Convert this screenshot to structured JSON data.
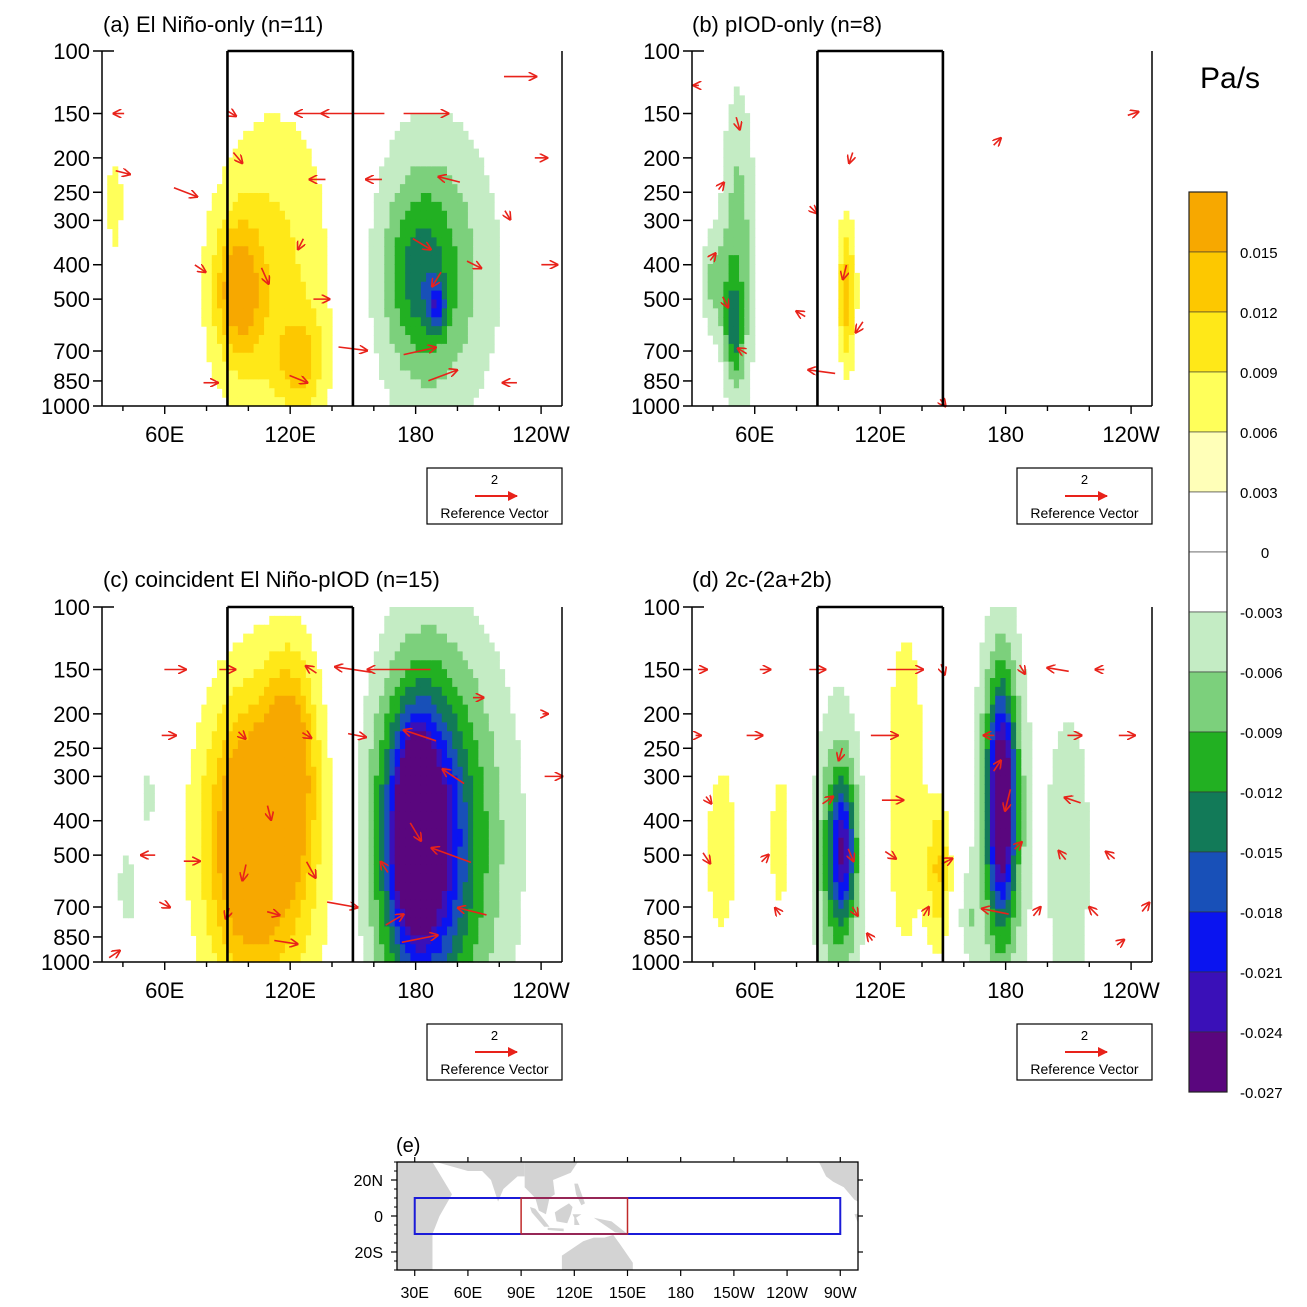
{
  "colorbar": {
    "title": "Pa/s",
    "colors": [
      "#f7a800",
      "#fdc800",
      "#ffe818",
      "#ffff5a",
      "#ffffb8",
      "#ffffff",
      "#ffffff",
      "#c4ecc4",
      "#7cd07c",
      "#22b022",
      "#127a58",
      "#1850b8",
      "#0a14f0",
      "#3a10b8",
      "#5a067e"
    ],
    "labels": [
      "0.015",
      "0.012",
      "0.009",
      "0.006",
      "0.003",
      "0",
      "-0.003",
      "-0.006",
      "-0.009",
      "-0.012",
      "-0.015",
      "-0.018",
      "-0.021",
      "-0.024",
      "-0.027"
    ]
  },
  "panels": [
    {
      "title": "(a)   El Niño-only (n=11)",
      "ref_vector_value": "2",
      "ref_vector_label": "Reference Vector",
      "blobs": [
        {
          "lon": 112,
          "p": 430,
          "wl": 22,
          "wp": 380,
          "v": 0.007
        },
        {
          "lon": 95,
          "p": 470,
          "wl": 8,
          "wp": 160,
          "v": 0.011
        },
        {
          "lon": 125,
          "p": 750,
          "wl": 8,
          "wp": 180,
          "v": 0.007
        },
        {
          "lon": 36,
          "p": 270,
          "wl": 3,
          "wp": 80,
          "v": 0.005
        },
        {
          "lon": 188,
          "p": 420,
          "wl": 22,
          "wp": 330,
          "v": -0.009
        },
        {
          "lon": 182,
          "p": 430,
          "wl": 10,
          "wp": 170,
          "v": -0.006
        },
        {
          "lon": 190,
          "p": 520,
          "wl": 3,
          "wp": 60,
          "v": -0.009
        }
      ],
      "arrows": [
        {
          "lon": 38,
          "p": 150,
          "u": -0.6,
          "w": 0
        },
        {
          "lon": 92,
          "p": 150,
          "u": 0.5,
          "w": -0.3
        },
        {
          "lon": 150,
          "p": 150,
          "u": -3.5,
          "w": 0
        },
        {
          "lon": 185,
          "p": 150,
          "u": 2.5,
          "w": 0
        },
        {
          "lon": 130,
          "p": 150,
          "u": -1.8,
          "w": 0
        },
        {
          "lon": 230,
          "p": 118,
          "u": 1.8,
          "w": 0
        },
        {
          "lon": 95,
          "p": 200,
          "u": 0.5,
          "w": -0.6
        },
        {
          "lon": 40,
          "p": 220,
          "u": 0.8,
          "w": -0.2
        },
        {
          "lon": 70,
          "p": 250,
          "u": 1.3,
          "w": -0.5
        },
        {
          "lon": 133,
          "p": 230,
          "u": -0.9,
          "w": 0
        },
        {
          "lon": 160,
          "p": 230,
          "u": -0.9,
          "w": 0
        },
        {
          "lon": 196,
          "p": 230,
          "u": -1.2,
          "w": 0.3
        },
        {
          "lon": 224,
          "p": 290,
          "u": 0.3,
          "w": -0.5
        },
        {
          "lon": 240,
          "p": 200,
          "u": 0.7,
          "w": 0
        },
        {
          "lon": 125,
          "p": 350,
          "u": -0.3,
          "w": -0.6
        },
        {
          "lon": 183,
          "p": 350,
          "u": 1.0,
          "w": -0.6
        },
        {
          "lon": 77,
          "p": 410,
          "u": 0.6,
          "w": -0.4
        },
        {
          "lon": 108,
          "p": 430,
          "u": 0.4,
          "w": -0.9
        },
        {
          "lon": 208,
          "p": 400,
          "u": 0.8,
          "w": -0.4
        },
        {
          "lon": 244,
          "p": 400,
          "u": 0.9,
          "w": 0
        },
        {
          "lon": 135,
          "p": 500,
          "u": 0.9,
          "w": 0
        },
        {
          "lon": 190,
          "p": 440,
          "u": -0.5,
          "w": -0.8
        },
        {
          "lon": 150,
          "p": 690,
          "u": 1.6,
          "w": -0.2
        },
        {
          "lon": 182,
          "p": 700,
          "u": 1.8,
          "w": 0.4
        },
        {
          "lon": 193,
          "p": 820,
          "u": 1.6,
          "w": 0.6
        },
        {
          "lon": 124,
          "p": 840,
          "u": 1.0,
          "w": -0.4
        },
        {
          "lon": 82,
          "p": 860,
          "u": 0.8,
          "w": 0
        },
        {
          "lon": 225,
          "p": 860,
          "u": -0.8,
          "w": 0
        }
      ]
    },
    {
      "title": "(b)   pIOD-only (n=8)",
      "ref_vector_value": "2",
      "ref_vector_label": "Reference Vector",
      "blobs": [
        {
          "lon": 52,
          "p": 380,
          "wl": 6,
          "wp": 330,
          "v": -0.008
        },
        {
          "lon": 40,
          "p": 450,
          "wl": 5,
          "wp": 120,
          "v": -0.006
        },
        {
          "lon": 50,
          "p": 600,
          "wl": 3,
          "wp": 150,
          "v": -0.008
        },
        {
          "lon": 104,
          "p": 480,
          "wl": 3,
          "wp": 180,
          "v": 0.011
        },
        {
          "lon": 176,
          "p": 180,
          "wl": 1.5,
          "wp": 25,
          "v": 0.003
        }
      ],
      "arrows": [
        {
          "lon": 32,
          "p": 125,
          "u": -0.3,
          "w": 0
        },
        {
          "lon": 52,
          "p": 160,
          "u": 0.2,
          "w": -0.7
        },
        {
          "lon": 106,
          "p": 200,
          "u": -0.2,
          "w": -0.6
        },
        {
          "lon": 176,
          "p": 180,
          "u": 0.4,
          "w": 0.4
        },
        {
          "lon": 241,
          "p": 150,
          "u": 0.6,
          "w": 0.2
        },
        {
          "lon": 44,
          "p": 240,
          "u": 0.3,
          "w": 0.4
        },
        {
          "lon": 88,
          "p": 280,
          "u": 0.4,
          "w": -0.4
        },
        {
          "lon": 40,
          "p": 380,
          "u": 0.3,
          "w": 0.4
        },
        {
          "lon": 103,
          "p": 420,
          "u": -0.2,
          "w": -0.8
        },
        {
          "lon": 46,
          "p": 510,
          "u": 0.3,
          "w": -0.6
        },
        {
          "lon": 110,
          "p": 600,
          "u": -0.4,
          "w": -0.6
        },
        {
          "lon": 82,
          "p": 550,
          "u": -0.5,
          "w": 0.3
        },
        {
          "lon": 54,
          "p": 700,
          "u": -0.5,
          "w": 0.3
        },
        {
          "lon": 92,
          "p": 800,
          "u": -1.5,
          "w": 0.2
        },
        {
          "lon": 150,
          "p": 980,
          "u": 0.3,
          "w": -0.4
        }
      ]
    },
    {
      "title": "(c)   coincident El Niño-pIOD (n=15)",
      "ref_vector_value": "2",
      "ref_vector_label": "Reference Vector",
      "blobs": [
        {
          "lon": 112,
          "p": 480,
          "wl": 24,
          "wp": 450,
          "v": 0.008
        },
        {
          "lon": 100,
          "p": 450,
          "wl": 14,
          "wp": 300,
          "v": 0.013
        },
        {
          "lon": 120,
          "p": 270,
          "wl": 8,
          "wp": 140,
          "v": 0.011
        },
        {
          "lon": 190,
          "p": 460,
          "wl": 24,
          "wp": 480,
          "v": -0.014
        },
        {
          "lon": 182,
          "p": 450,
          "wl": 12,
          "wp": 300,
          "v": -0.02
        },
        {
          "lon": 180,
          "p": 420,
          "wl": 5,
          "wp": 150,
          "v": -0.026
        },
        {
          "lon": 42,
          "p": 620,
          "wl": 3,
          "wp": 120,
          "v": -0.006
        },
        {
          "lon": 52,
          "p": 350,
          "wl": 2,
          "wp": 60,
          "v": -0.006
        }
      ],
      "arrows": [
        {
          "lon": 65,
          "p": 150,
          "u": 1.2,
          "w": 0
        },
        {
          "lon": 90,
          "p": 150,
          "u": 0.9,
          "w": 0
        },
        {
          "lon": 130,
          "p": 150,
          "u": -0.6,
          "w": 0.4
        },
        {
          "lon": 150,
          "p": 150,
          "u": -2.0,
          "w": 0.3
        },
        {
          "lon": 172,
          "p": 150,
          "u": -3.5,
          "w": 0
        },
        {
          "lon": 210,
          "p": 180,
          "u": 0.6,
          "w": 0
        },
        {
          "lon": 242,
          "p": 200,
          "u": 0.3,
          "w": 0
        },
        {
          "lon": 62,
          "p": 230,
          "u": 0.8,
          "w": 0
        },
        {
          "lon": 97,
          "p": 230,
          "u": 0.4,
          "w": -0.4
        },
        {
          "lon": 128,
          "p": 230,
          "u": 0.5,
          "w": -0.3
        },
        {
          "lon": 152,
          "p": 230,
          "u": 1.0,
          "w": -0.2
        },
        {
          "lon": 182,
          "p": 230,
          "u": -1.8,
          "w": 0.6
        },
        {
          "lon": 198,
          "p": 300,
          "u": -1.2,
          "w": 0.8
        },
        {
          "lon": 246,
          "p": 300,
          "u": 1.0,
          "w": 0
        },
        {
          "lon": 110,
          "p": 380,
          "u": 0.2,
          "w": -0.8
        },
        {
          "lon": 180,
          "p": 430,
          "u": 0.6,
          "w": -1.0
        },
        {
          "lon": 197,
          "p": 500,
          "u": -2.2,
          "w": 0.8
        },
        {
          "lon": 52,
          "p": 500,
          "u": -0.8,
          "w": 0
        },
        {
          "lon": 73,
          "p": 520,
          "u": 0.9,
          "w": 0
        },
        {
          "lon": 98,
          "p": 560,
          "u": -0.2,
          "w": -0.9
        },
        {
          "lon": 130,
          "p": 550,
          "u": 0.5,
          "w": -0.9
        },
        {
          "lon": 165,
          "p": 540,
          "u": -0.4,
          "w": 0.6
        },
        {
          "lon": 207,
          "p": 720,
          "u": -1.6,
          "w": 0.4
        },
        {
          "lon": 145,
          "p": 690,
          "u": 1.7,
          "w": -0.3
        },
        {
          "lon": 90,
          "p": 730,
          "u": -0.2,
          "w": -0.6
        },
        {
          "lon": 112,
          "p": 730,
          "u": 0.7,
          "w": -0.2
        },
        {
          "lon": 60,
          "p": 690,
          "u": 0.6,
          "w": -0.3
        },
        {
          "lon": 182,
          "p": 860,
          "u": 2.0,
          "w": 0.4
        },
        {
          "lon": 36,
          "p": 950,
          "u": 0.6,
          "w": 0.4
        },
        {
          "lon": 118,
          "p": 880,
          "u": 1.3,
          "w": -0.2
        },
        {
          "lon": 170,
          "p": 760,
          "u": 1.0,
          "w": 0.6
        }
      ]
    },
    {
      "title": "(d)   2c-(2a+2b)",
      "ref_vector_value": "2",
      "ref_vector_label": "Reference Vector",
      "blobs": [
        {
          "lon": 100,
          "p": 520,
          "wl": 8,
          "wp": 400,
          "v": -0.011
        },
        {
          "lon": 102,
          "p": 480,
          "wl": 4,
          "wp": 150,
          "v": -0.014
        },
        {
          "lon": 178,
          "p": 380,
          "wl": 8,
          "wp": 340,
          "v": -0.014
        },
        {
          "lon": 178,
          "p": 350,
          "wl": 4,
          "wp": 170,
          "v": -0.02
        },
        {
          "lon": 210,
          "p": 500,
          "wl": 8,
          "wp": 420,
          "v": -0.006
        },
        {
          "lon": 44,
          "p": 480,
          "wl": 8,
          "wp": 350,
          "v": 0.004
        },
        {
          "lon": 72,
          "p": 450,
          "wl": 5,
          "wp": 250,
          "v": 0.004
        },
        {
          "lon": 132,
          "p": 330,
          "wl": 8,
          "wp": 350,
          "v": 0.005
        },
        {
          "lon": 148,
          "p": 560,
          "wl": 4,
          "wp": 200,
          "v": 0.009
        },
        {
          "lon": 162,
          "p": 760,
          "wl": 3,
          "wp": 160,
          "v": -0.005
        },
        {
          "lon": 242,
          "p": 320,
          "wl": 2,
          "wp": 70,
          "v": 0.003
        }
      ],
      "arrows": [
        {
          "lon": 35,
          "p": 150,
          "u": 0.5,
          "w": 0
        },
        {
          "lon": 65,
          "p": 150,
          "u": 0.6,
          "w": 0
        },
        {
          "lon": 90,
          "p": 150,
          "u": 0.9,
          "w": 0
        },
        {
          "lon": 132,
          "p": 150,
          "u": 2.0,
          "w": 0
        },
        {
          "lon": 150,
          "p": 150,
          "u": 0.2,
          "w": -0.6
        },
        {
          "lon": 188,
          "p": 150,
          "u": 0.3,
          "w": -0.5
        },
        {
          "lon": 205,
          "p": 150,
          "u": -1.2,
          "w": 0.2
        },
        {
          "lon": 225,
          "p": 150,
          "u": -0.5,
          "w": 0
        },
        {
          "lon": 60,
          "p": 230,
          "u": 0.9,
          "w": 0
        },
        {
          "lon": 33,
          "p": 230,
          "u": 0.3,
          "w": 0
        },
        {
          "lon": 122,
          "p": 230,
          "u": 1.5,
          "w": 0
        },
        {
          "lon": 172,
          "p": 230,
          "u": -0.6,
          "w": 0
        },
        {
          "lon": 213,
          "p": 230,
          "u": 0.8,
          "w": 0
        },
        {
          "lon": 238,
          "p": 230,
          "u": 0.9,
          "w": 0
        },
        {
          "lon": 101,
          "p": 260,
          "u": -0.2,
          "w": -0.7
        },
        {
          "lon": 176,
          "p": 280,
          "u": 0.4,
          "w": 0.6
        },
        {
          "lon": 38,
          "p": 350,
          "u": 0.3,
          "w": -0.4
        },
        {
          "lon": 95,
          "p": 350,
          "u": 0.6,
          "w": 0.4
        },
        {
          "lon": 126,
          "p": 350,
          "u": 1.2,
          "w": 0
        },
        {
          "lon": 181,
          "p": 350,
          "u": -0.3,
          "w": -1.2
        },
        {
          "lon": 212,
          "p": 350,
          "u": -0.9,
          "w": 0.3
        },
        {
          "lon": 186,
          "p": 470,
          "u": 0.4,
          "w": 0.4
        },
        {
          "lon": 106,
          "p": 500,
          "u": 0.3,
          "w": -0.7
        },
        {
          "lon": 37,
          "p": 510,
          "u": 0.4,
          "w": -0.6
        },
        {
          "lon": 65,
          "p": 510,
          "u": 0.4,
          "w": 0.4
        },
        {
          "lon": 125,
          "p": 500,
          "u": 0.6,
          "w": -0.4
        },
        {
          "lon": 152,
          "p": 520,
          "u": 0.6,
          "w": 0.3
        },
        {
          "lon": 207,
          "p": 500,
          "u": -0.4,
          "w": 0.5
        },
        {
          "lon": 230,
          "p": 500,
          "u": -0.5,
          "w": 0.4
        },
        {
          "lon": 71,
          "p": 720,
          "u": -0.3,
          "w": 0.4
        },
        {
          "lon": 108,
          "p": 720,
          "u": 0.3,
          "w": -0.5
        },
        {
          "lon": 142,
          "p": 720,
          "u": 0.3,
          "w": 0.5
        },
        {
          "lon": 175,
          "p": 720,
          "u": -1.5,
          "w": 0.3
        },
        {
          "lon": 195,
          "p": 720,
          "u": 0.4,
          "w": 0.5
        },
        {
          "lon": 222,
          "p": 720,
          "u": -0.5,
          "w": 0.5
        },
        {
          "lon": 247,
          "p": 700,
          "u": 0.4,
          "w": 0.5
        },
        {
          "lon": 115,
          "p": 850,
          "u": -0.3,
          "w": 0.4
        },
        {
          "lon": 235,
          "p": 880,
          "u": 0.4,
          "w": 0.3
        }
      ]
    }
  ],
  "axes": {
    "yticks": [
      "100",
      "150",
      "200",
      "250",
      "300",
      "400",
      "500",
      "700",
      "850",
      "1000"
    ],
    "xticks": [
      "60E",
      "120E",
      "180",
      "120W"
    ]
  },
  "map": {
    "title": "(e)",
    "yticks": [
      "20N",
      "0",
      "20S"
    ],
    "xticks": [
      "30E",
      "60E",
      "90E",
      "120E",
      "150E",
      "180",
      "150W",
      "120W",
      "90W"
    ],
    "outer_box": {
      "lon_start": 30,
      "lon_end": 270,
      "lat_start": -10,
      "lat_end": 10,
      "color": "#1b1bd8"
    },
    "inner_box": {
      "lon_start": 90,
      "lon_end": 150,
      "lat_start": -10,
      "lat_end": 10,
      "color": "#c02a2a"
    }
  }
}
